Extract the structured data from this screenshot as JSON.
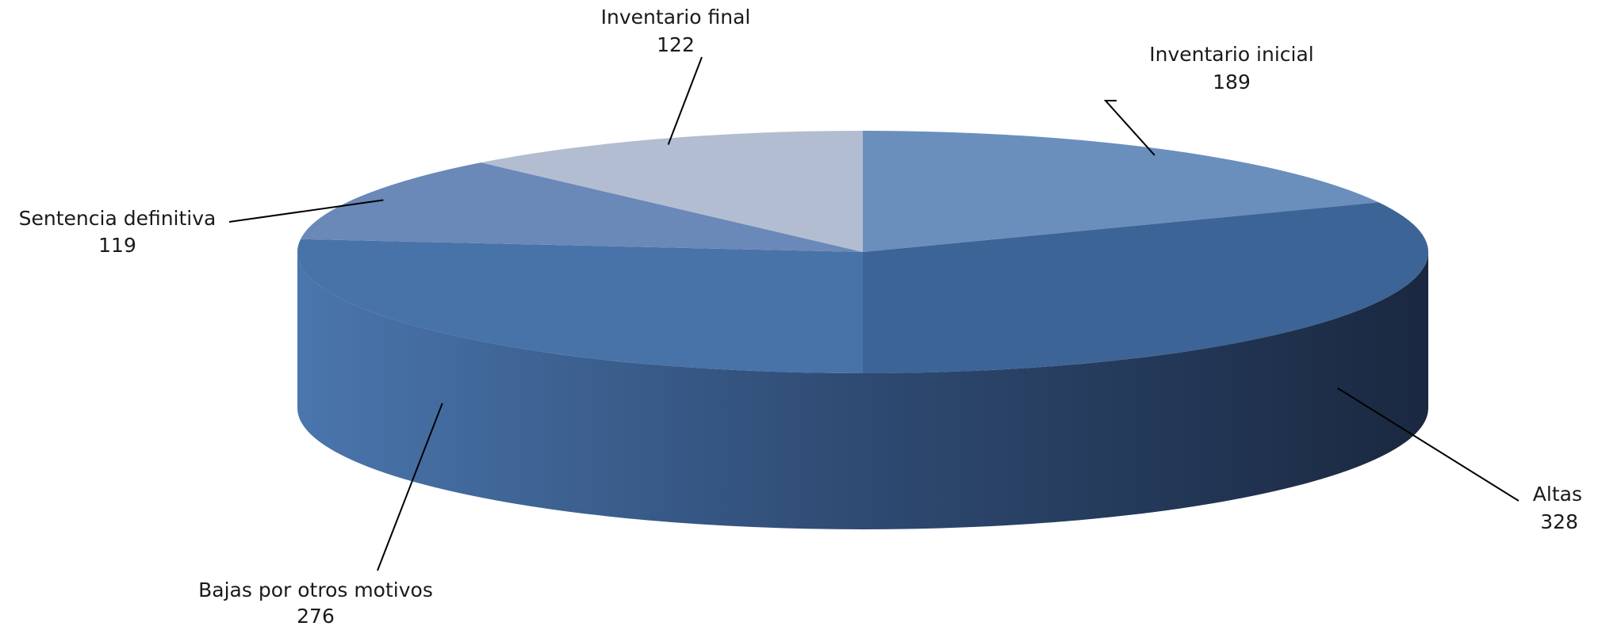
{
  "chart_data": {
    "type": "pie",
    "title": "",
    "categories": [
      "Inventario inicial",
      "Altas",
      "Bajas por otros motivos",
      "Sentencia definitiva",
      "Inventario final"
    ],
    "values": [
      189,
      328,
      276,
      119,
      122
    ],
    "colors": {
      "Inventario inicial": "#6a8fbd",
      "Altas": "#3d6496",
      "Bajas por otros motivos": "#4873a8",
      "Sentencia definitiva": "#6a88b8",
      "Inventario final": "#b3bdd1"
    },
    "side_colors": {
      "dark": "#1a2840",
      "mid": "#2e4a72",
      "light": "#4a76ad"
    },
    "style": "3d",
    "legend": "none"
  },
  "labels": [
    {
      "name": "Inventario inicial",
      "value": "189"
    },
    {
      "name": "Altas",
      "value": "328"
    },
    {
      "name": "Bajas por otros motivos",
      "value": "276"
    },
    {
      "name": "Sentencia definitiva",
      "value": "119"
    },
    {
      "name": "Inventario final",
      "value": "122"
    }
  ]
}
